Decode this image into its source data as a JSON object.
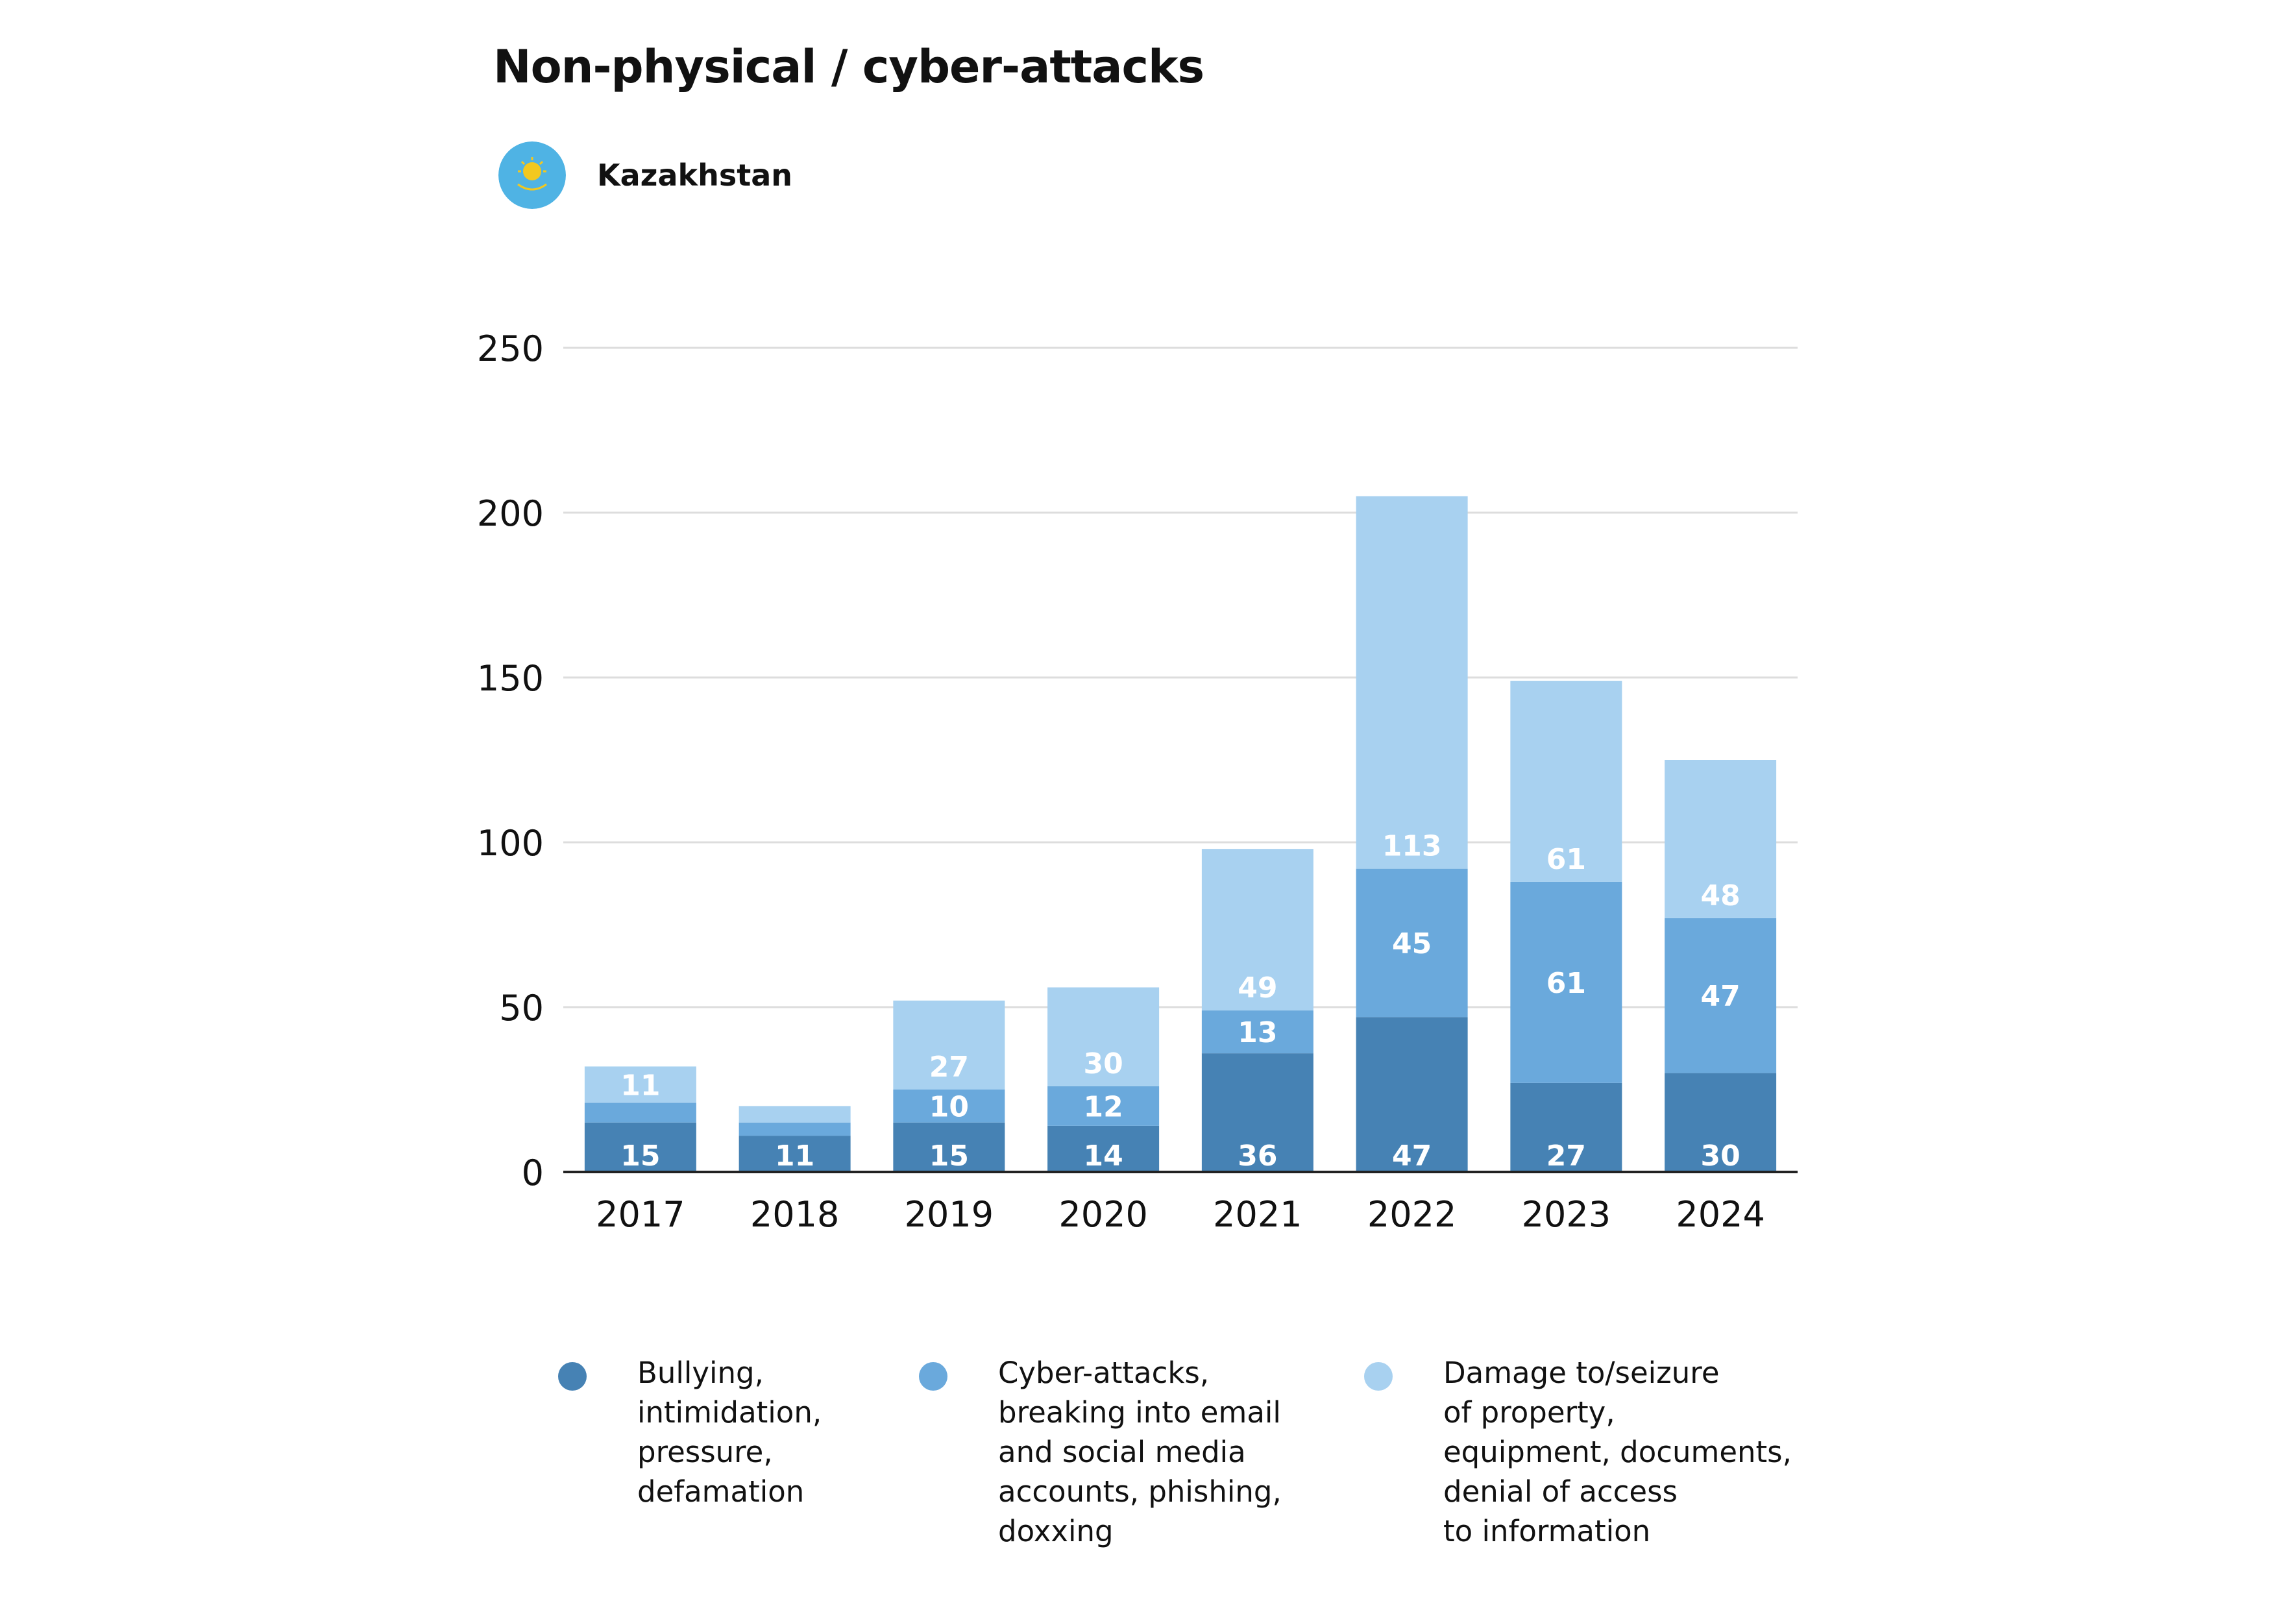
{
  "title": "Non-physical / cyber-attacks",
  "country": {
    "name": "Kazakhstan",
    "flag_icon": "kazakhstan-flag-icon"
  },
  "colors": {
    "bullying": "#4682b4",
    "cyber": "#6aa9dc",
    "damage": "#a8d1f0",
    "grid": "#dddddd",
    "axis": "#222222",
    "segment_label": "#ffffff"
  },
  "legend": [
    {
      "key": "bullying",
      "label": "Bullying,\nintimidation,\npressure,\ndefamation"
    },
    {
      "key": "cyber",
      "label": "Cyber-attacks,\nbreaking into email\nand social media\naccounts, phishing,\ndoxxing"
    },
    {
      "key": "damage",
      "label": "Damage to/seizure\nof property,\nequipment, documents,\ndenial of access\nto information"
    }
  ],
  "chart_data": {
    "type": "bar",
    "stacked": true,
    "categories": [
      "2017",
      "2018",
      "2019",
      "2020",
      "2021",
      "2022",
      "2023",
      "2024"
    ],
    "series": [
      {
        "name": "Bullying, intimidation, pressure, defamation",
        "key": "bullying",
        "values": [
          15,
          11,
          15,
          14,
          36,
          47,
          27,
          30
        ]
      },
      {
        "name": "Cyber-attacks, breaking into email and social media accounts, phishing, doxxing",
        "key": "cyber",
        "values": [
          6,
          4,
          10,
          12,
          13,
          45,
          61,
          47
        ]
      },
      {
        "name": "Damage to/seizure of property, equipment, documents, denial of access to information",
        "key": "damage",
        "values": [
          11,
          5,
          27,
          30,
          49,
          113,
          61,
          48
        ]
      }
    ],
    "segment_labels": [
      [
        "15",
        null,
        "11"
      ],
      [
        "11",
        null,
        null
      ],
      [
        "15",
        "10",
        "27"
      ],
      [
        "14",
        "12",
        "30"
      ],
      [
        "36",
        "13",
        "49"
      ],
      [
        "47",
        "45",
        "113"
      ],
      [
        "27",
        "61",
        "61"
      ],
      [
        "30",
        "47",
        "48"
      ]
    ],
    "ylim": [
      0,
      250
    ],
    "yticks": [
      "0",
      "50",
      "100",
      "150",
      "200",
      "250"
    ],
    "grid": true,
    "xlabel": "",
    "ylabel": "",
    "legend_position": "bottom"
  }
}
